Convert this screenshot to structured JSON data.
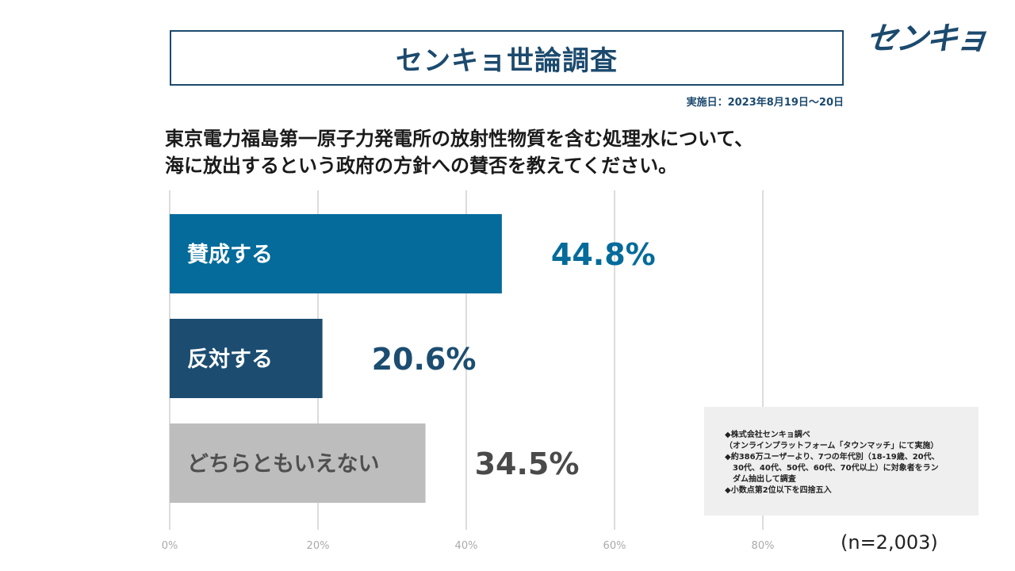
{
  "header": {
    "title": "センキョ世論調査",
    "logo_text": "センキョ",
    "survey_date": "実施日：2023年8月19日～20日"
  },
  "question": {
    "line1": "東京電力福島第一原子力発電所の放射性物質を含む処理水について、",
    "line2": "海に放出するという政府の方針への賛否を教えてください。"
  },
  "chart_data": {
    "type": "bar",
    "orientation": "horizontal",
    "categories": [
      "賛成する",
      "反対する",
      "どちらともいえない"
    ],
    "values": [
      44.8,
      20.6,
      34.5
    ],
    "value_labels": [
      "44.8%",
      "20.6%",
      "34.5%"
    ],
    "colors": [
      "#046b9b",
      "#1c4d71",
      "#bdbdbd"
    ],
    "label_colors": [
      "#046b9b",
      "#1c4d71",
      "#4a4a4a"
    ],
    "xlim": [
      0,
      80
    ],
    "xticks": [
      0,
      20,
      40,
      60,
      80
    ],
    "xtick_labels": [
      "0%",
      "20%",
      "40%",
      "60%",
      "80%"
    ],
    "grid": true,
    "title": "",
    "xlabel": "",
    "ylabel": ""
  },
  "notes": {
    "lines": [
      "◆株式会社センキョ調べ",
      "（オンラインプラットフォーム「タウンマッチ」にて実施）",
      "◆約386万ユーザーより、7つの年代別（18-19歳、20代、",
      "　30代、40代、50代、60代、70代以上）に対象者をラン",
      "　ダム抽出して調査",
      "◆小数点第2位以下を四捨五入"
    ]
  },
  "sample_size": "(n=2,003)"
}
